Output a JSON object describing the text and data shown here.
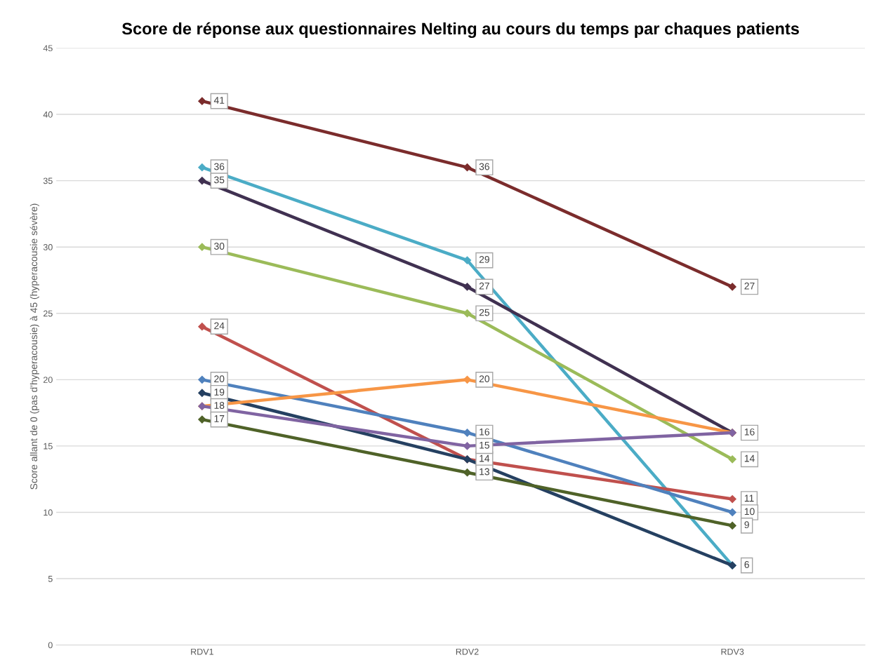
{
  "chart_data": {
    "type": "line",
    "title": "Score de réponse aux questionnaires Nelting au cours du temps par chaques patients",
    "ylabel": "Score allant de 0 (pas d'hyperacousie) à 45 (hyperacousie sévère)",
    "categories": [
      "RDV1",
      "RDV2",
      "RDV3"
    ],
    "ylim": [
      0,
      45
    ],
    "yticks": [
      0,
      5,
      10,
      15,
      20,
      25,
      30,
      35,
      40,
      45
    ],
    "grid": "y",
    "legend": false,
    "marker": "diamond",
    "series": [
      {
        "color": "#7b2c2c",
        "values": [
          41,
          36,
          27
        ],
        "value_labels": [
          "41",
          "36",
          "27"
        ]
      },
      {
        "color": "#4bacc6",
        "values": [
          36,
          29,
          6
        ],
        "value_labels": [
          "36",
          "29",
          "6"
        ]
      },
      {
        "color": "#403151",
        "values": [
          35,
          27,
          16
        ],
        "value_labels": [
          "35",
          "27",
          "16"
        ]
      },
      {
        "color": "#9bbb59",
        "values": [
          30,
          25,
          14
        ],
        "value_labels": [
          "30",
          "25",
          "14"
        ]
      },
      {
        "color": "#c0504d",
        "values": [
          24,
          14,
          11
        ],
        "value_labels": [
          "24",
          "14",
          "11"
        ]
      },
      {
        "color": "#4f81bd",
        "values": [
          20,
          16,
          10
        ],
        "value_labels": [
          "20",
          "16",
          "10"
        ]
      },
      {
        "color": "#254061",
        "values": [
          19,
          14,
          6
        ],
        "value_labels": [
          "19",
          null,
          null
        ]
      },
      {
        "color": "#f79646",
        "values": [
          18,
          20,
          16
        ],
        "value_labels": [
          "18",
          "20",
          null
        ]
      },
      {
        "color": "#8064a2",
        "values": [
          18,
          15,
          16
        ],
        "value_labels": [
          null,
          "15",
          null
        ]
      },
      {
        "color": "#4f6228",
        "values": [
          17,
          13,
          9
        ],
        "value_labels": [
          "17",
          "13",
          "9"
        ]
      }
    ]
  }
}
